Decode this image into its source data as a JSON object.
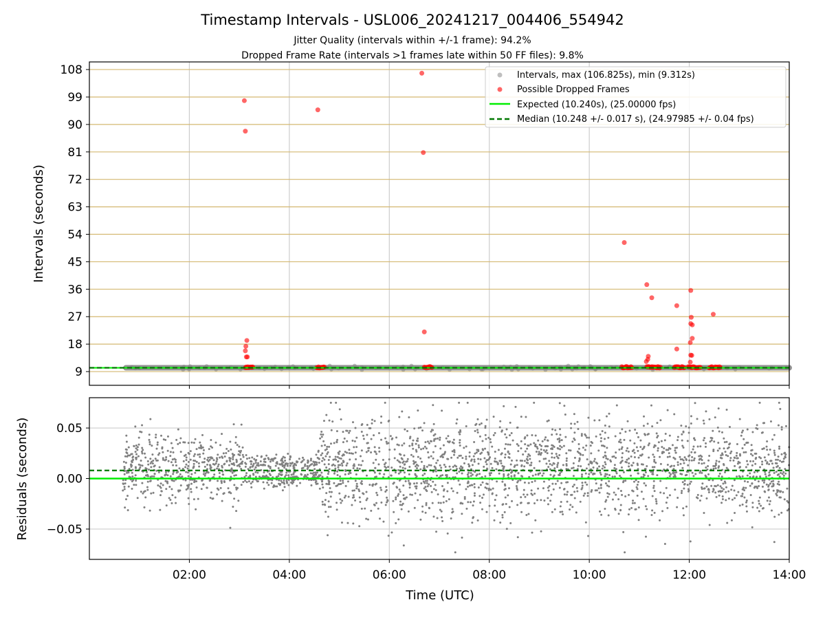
{
  "header": {
    "title": "Timestamp Intervals - USL006_20241217_004406_554942",
    "subtitle1": "Jitter Quality (intervals within +/-1 frame): 94.2%",
    "subtitle2": "Dropped Frame Rate (intervals >1 frames late within 50 FF files): 9.8%"
  },
  "colors": {
    "intervals": "#808080",
    "dropped": "#ff0000",
    "expected": "#00ee00",
    "median": "#007700",
    "hgrid": "#d4b871",
    "vgrid": "#cccccc"
  },
  "chart_data": [
    {
      "type": "scatter",
      "panel": "top",
      "ylabel": "Intervals (seconds)",
      "xlabel": "",
      "x_unit": "hours UTC",
      "xlim": [
        0.0,
        14.0
      ],
      "ylim": [
        4.5,
        110.5
      ],
      "yticks": [
        9,
        18,
        27,
        36,
        45,
        54,
        63,
        72,
        81,
        90,
        99,
        108
      ],
      "grid": true,
      "legend_position": "top-right",
      "legend": [
        {
          "key": "intervals",
          "label": "Intervals, max (106.825s), min (9.312s)",
          "marker": "dot"
        },
        {
          "key": "dropped",
          "label": "Possible Dropped Frames",
          "marker": "dot"
        },
        {
          "key": "expected",
          "label": "Expected (10.240s), (25.00000 fps)",
          "marker": "line"
        },
        {
          "key": "median",
          "label": "Median (10.248 +/- 0.017 s), (24.97985 +/- 0.04 fps)",
          "marker": "dash"
        }
      ],
      "series": {
        "intervals": {
          "x_range": [
            0.73,
            14.0
          ],
          "baseline": 10.24,
          "min": 9.312,
          "max": 106.825
        },
        "expected": 10.24,
        "median": 10.248,
        "dropped_clusters": [
          [
            3.12,
            3.27
          ],
          [
            4.55,
            4.7
          ],
          [
            6.7,
            6.85
          ],
          [
            10.65,
            10.85
          ],
          [
            11.15,
            11.42
          ],
          [
            11.7,
            11.9
          ],
          [
            11.98,
            12.22
          ],
          [
            12.4,
            12.62
          ]
        ],
        "dropped_outliers": [
          [
            3.1,
            97.8
          ],
          [
            3.12,
            87.8
          ],
          [
            4.57,
            94.8
          ],
          [
            6.65,
            106.8
          ],
          [
            6.68,
            80.8
          ],
          [
            3.15,
            19.2
          ],
          [
            3.13,
            17.3
          ],
          [
            3.12,
            15.8
          ],
          [
            3.14,
            13.8
          ],
          [
            3.16,
            13.8
          ],
          [
            6.7,
            22.0
          ],
          [
            10.7,
            51.3
          ],
          [
            11.15,
            37.5
          ],
          [
            11.25,
            33.2
          ],
          [
            11.18,
            14.0
          ],
          [
            11.17,
            13.0
          ],
          [
            11.14,
            12.3
          ],
          [
            11.75,
            30.6
          ],
          [
            11.75,
            16.4
          ],
          [
            12.03,
            35.6
          ],
          [
            12.04,
            26.8
          ],
          [
            12.03,
            24.7
          ],
          [
            12.06,
            24.3
          ],
          [
            12.06,
            19.9
          ],
          [
            12.02,
            18.5
          ],
          [
            12.03,
            14.4
          ],
          [
            12.05,
            14.3
          ],
          [
            12.02,
            12.1
          ],
          [
            12.48,
            27.8
          ]
        ]
      }
    },
    {
      "type": "scatter",
      "panel": "bottom",
      "xlabel": "Time (UTC)",
      "ylabel": "Residuals (seconds)",
      "xlim": [
        0.0,
        14.0
      ],
      "ylim": [
        -0.08,
        0.08
      ],
      "xticks": [
        2,
        4,
        6,
        8,
        10,
        12,
        14
      ],
      "xtick_labels": [
        "02:00",
        "04:00",
        "06:00",
        "08:00",
        "10:00",
        "12:00",
        "14:00"
      ],
      "ytick_values": [
        0.05,
        0.0,
        -0.05
      ],
      "ytick_labels": [
        "0.05",
        "0.00",
        "−0.05"
      ],
      "grid": true,
      "series": {
        "expected_residual": 0.0,
        "median_residual": 0.008,
        "segments": [
          {
            "x_range": [
              0.67,
              3.08
            ],
            "levels": [
              0.0,
              0.02
            ],
            "spread": 0.014
          },
          {
            "x_range": [
              3.08,
              4.57
            ],
            "levels": [
              0.0,
              0.015
            ],
            "spread": 0.004
          },
          {
            "x_range": [
              4.57,
              14.0
            ],
            "levels": [
              0.0,
              0.02
            ],
            "spread": 0.022
          }
        ],
        "residual_range": [
          -0.073,
          0.075
        ]
      }
    }
  ]
}
